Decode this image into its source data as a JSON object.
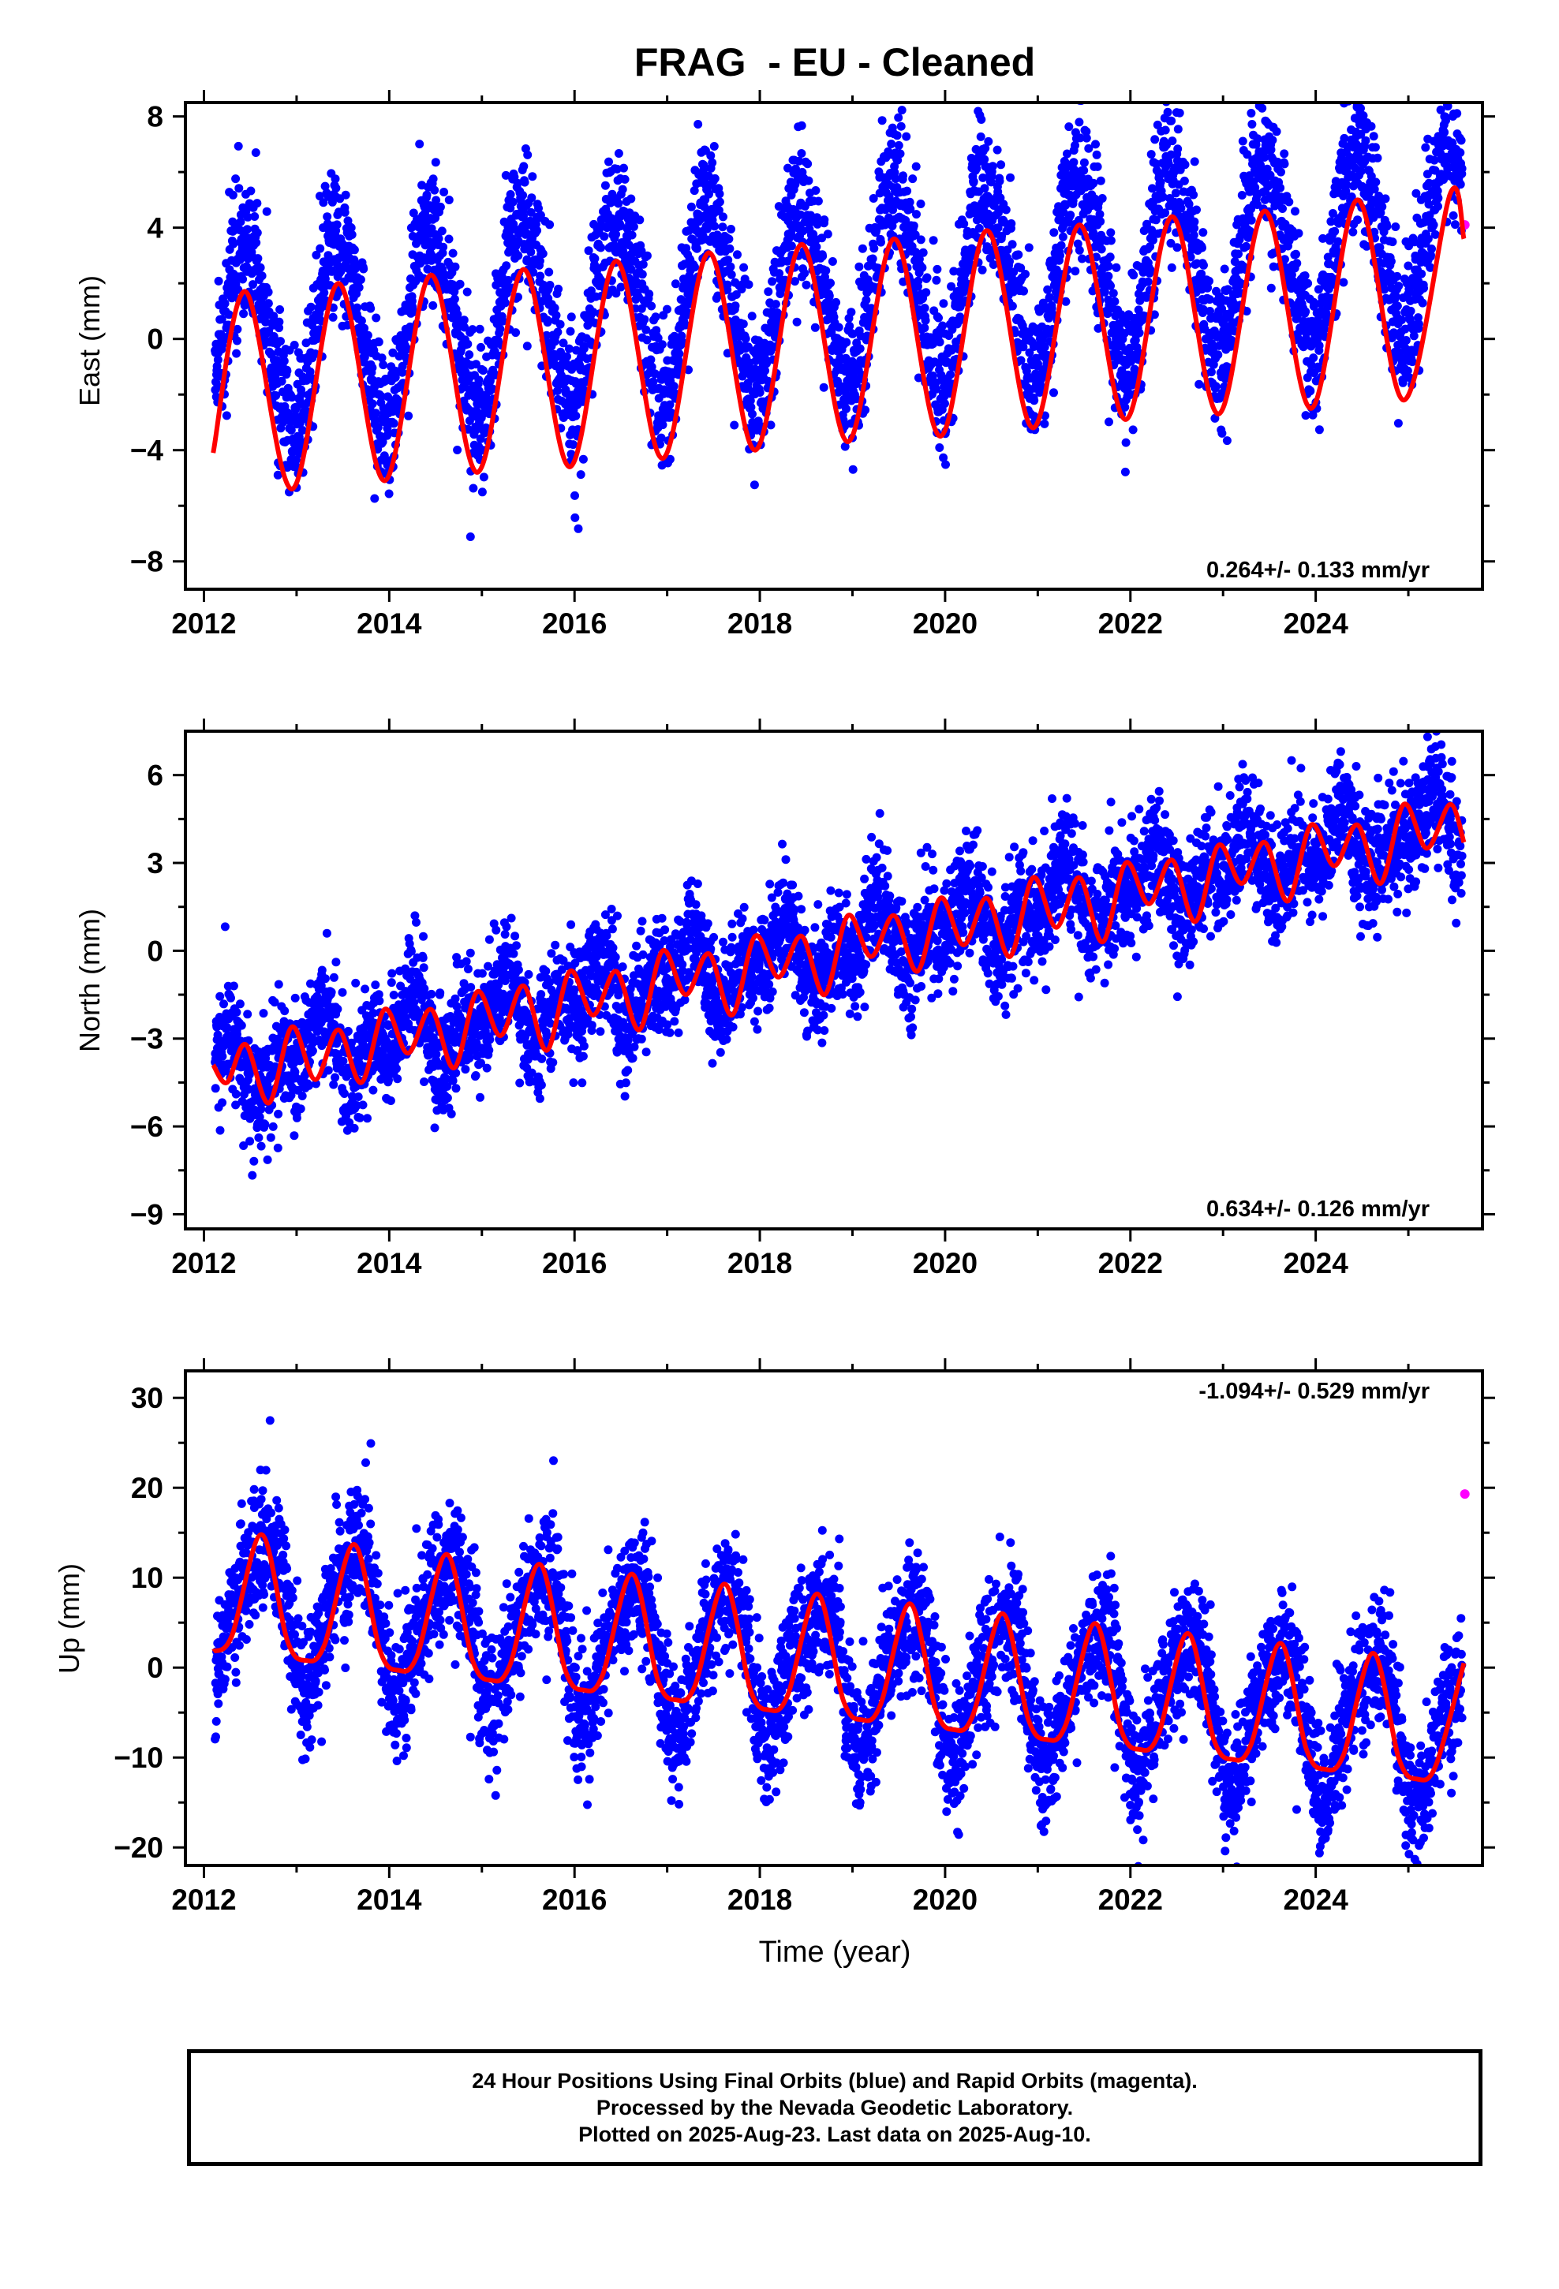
{
  "title": "FRAG  - EU - Cleaned",
  "colors": {
    "final_orbits": "#0000ff",
    "rapid_orbits": "#ff00ff",
    "model_fit": "#ff0000",
    "frame": "#000000"
  },
  "x_axis_label": "Time (year)",
  "footer": {
    "line1": "24 Hour Positions Using Final Orbits (blue) and Rapid Orbits (magenta).",
    "line2": "Processed by the Nevada Geodetic Laboratory.",
    "line3": "Plotted on 2025-Aug-23. Last data on 2025-Aug-10."
  },
  "panels": [
    {
      "ylabel": "East (mm)",
      "rate_label": "0.264+/- 0.133 mm/yr"
    },
    {
      "ylabel": "North (mm)",
      "rate_label": "0.634+/- 0.126 mm/yr"
    },
    {
      "ylabel": "Up (mm)",
      "rate_label": "-1.094+/- 0.529 mm/yr"
    }
  ],
  "chart_data": [
    {
      "type": "scatter",
      "ylabel": "East (mm)",
      "xlim": [
        2011.8,
        2025.8
      ],
      "ylim": [
        -9,
        8.5
      ],
      "x_ticks": [
        2012,
        2014,
        2016,
        2018,
        2020,
        2022,
        2024
      ],
      "y_ticks": [
        -8,
        -4,
        0,
        4,
        8
      ],
      "rate_annotation": "0.264+/- 0.133 mm/yr",
      "series": [
        {
          "name": "Final Orbits (blue)",
          "kind": "daily positions",
          "x_range": [
            2012.12,
            2025.58
          ],
          "model": {
            "base": 0,
            "slope": 0.264,
            "annual_amp": 3.4,
            "annual_phase_year": 0.45,
            "semiannual_amp": 0.3,
            "scatter_sd": 1.3
          }
        },
        {
          "name": "Rapid Orbits (magenta)",
          "kind": "daily positions",
          "points": [
            [
              2025.61,
              4.1
            ]
          ]
        },
        {
          "name": "model fit",
          "kind": "line",
          "x": [
            2012.1,
            2012.45,
            2012.95,
            2013.45,
            2013.95,
            2014.45,
            2014.95,
            2015.45,
            2015.95,
            2016.45,
            2016.95,
            2017.45,
            2017.95,
            2018.45,
            2018.95,
            2019.45,
            2019.95,
            2020.45,
            2020.95,
            2021.45,
            2021.95,
            2022.45,
            2022.95,
            2023.45,
            2023.95,
            2024.45,
            2024.95,
            2025.45,
            2025.6
          ],
          "y": [
            -4.1,
            1.7,
            -5.4,
            2.0,
            -5.1,
            2.3,
            -4.8,
            2.5,
            -4.6,
            2.8,
            -4.3,
            3.1,
            -4.0,
            3.4,
            -3.7,
            3.6,
            -3.5,
            3.9,
            -3.2,
            4.1,
            -2.9,
            4.4,
            -2.7,
            4.6,
            -2.5,
            5.0,
            -2.2,
            5.2,
            3.6
          ]
        }
      ]
    },
    {
      "type": "scatter",
      "ylabel": "North (mm)",
      "xlim": [
        2011.8,
        2025.8
      ],
      "ylim": [
        -9.5,
        7.5
      ],
      "x_ticks": [
        2012,
        2014,
        2016,
        2018,
        2020,
        2022,
        2024
      ],
      "y_ticks": [
        -9,
        -6,
        -3,
        0,
        3,
        6
      ],
      "rate_annotation": "0.634+/- 0.126 mm/yr",
      "series": [
        {
          "name": "Final Orbits (blue)",
          "kind": "daily positions",
          "x_range": [
            2012.12,
            2025.58
          ],
          "model": {
            "base": -4.2,
            "slope": 0.634,
            "annual_amp": 0.75,
            "annual_phase_year": 0.2,
            "semiannual_amp": 0.65,
            "scatter_sd": 1.0
          }
        },
        {
          "name": "model fit",
          "kind": "line",
          "x": [
            2012.1,
            2012.25,
            2012.45,
            2012.7,
            2012.95,
            2013.2,
            2013.45,
            2013.7,
            2013.95,
            2014.2,
            2014.45,
            2014.7,
            2014.95,
            2015.2,
            2015.45,
            2015.7,
            2015.95,
            2016.2,
            2016.45,
            2016.7,
            2016.95,
            2017.2,
            2017.45,
            2017.7,
            2017.95,
            2018.2,
            2018.45,
            2018.7,
            2018.95,
            2019.2,
            2019.45,
            2019.7,
            2019.95,
            2020.2,
            2020.45,
            2020.7,
            2020.95,
            2021.2,
            2021.45,
            2021.7,
            2021.95,
            2022.2,
            2022.45,
            2022.7,
            2022.95,
            2023.2,
            2023.45,
            2023.7,
            2023.95,
            2024.2,
            2024.45,
            2024.7,
            2024.95,
            2025.2,
            2025.45,
            2025.6
          ],
          "y": [
            -3.9,
            -4.5,
            -3.2,
            -5.2,
            -2.6,
            -4.4,
            -2.7,
            -4.5,
            -2.0,
            -3.5,
            -2.0,
            -4.0,
            -1.4,
            -2.9,
            -1.2,
            -3.4,
            -0.7,
            -2.2,
            -0.7,
            -2.7,
            0.0,
            -1.5,
            -0.1,
            -2.2,
            0.5,
            -0.9,
            0.5,
            -1.5,
            1.2,
            -0.2,
            1.2,
            -0.7,
            1.8,
            0.2,
            1.8,
            -0.2,
            2.5,
            0.8,
            2.5,
            0.3,
            3.0,
            1.6,
            3.1,
            1.0,
            3.6,
            2.3,
            3.7,
            1.7,
            4.3,
            2.9,
            4.3,
            2.3,
            5.0,
            3.5,
            5.0,
            3.7
          ]
        }
      ]
    },
    {
      "type": "scatter",
      "ylabel": "Up (mm)",
      "xlim": [
        2011.8,
        2025.8
      ],
      "ylim": [
        -22,
        33
      ],
      "x_ticks": [
        2012,
        2014,
        2016,
        2018,
        2020,
        2022,
        2024
      ],
      "y_ticks": [
        -20,
        -10,
        0,
        10,
        20,
        30
      ],
      "xlabel": "Time (year)",
      "rate_annotation": "-1.094+/- 0.529 mm/yr",
      "series": [
        {
          "name": "Final Orbits (blue)",
          "kind": "daily positions",
          "x_range": [
            2012.12,
            2025.58
          ],
          "model": {
            "base": 7.5,
            "slope": -1.094,
            "annual_amp": 7.5,
            "annual_phase_year": 0.62,
            "semiannual_amp": 1.8,
            "scatter_sd": 3.6
          }
        },
        {
          "name": "Rapid Orbits (magenta)",
          "kind": "daily positions",
          "points": [
            [
              2025.61,
              19.3
            ]
          ]
        },
        {
          "name": "model fit",
          "kind": "line",
          "x": [
            2012.1,
            2012.3,
            2012.62,
            2012.9,
            2013.1,
            2013.3,
            2013.62,
            2013.9,
            2014.1,
            2014.3,
            2014.62,
            2014.9,
            2015.1,
            2015.3,
            2015.62,
            2015.9,
            2016.1,
            2016.3,
            2016.62,
            2016.9,
            2017.1,
            2017.3,
            2017.62,
            2017.9,
            2018.1,
            2018.3,
            2018.62,
            2018.9,
            2019.1,
            2019.3,
            2019.62,
            2019.9,
            2020.1,
            2020.3,
            2020.62,
            2020.9,
            2021.1,
            2021.3,
            2021.62,
            2021.9,
            2022.1,
            2022.3,
            2022.62,
            2022.9,
            2023.1,
            2023.3,
            2023.62,
            2023.9,
            2024.1,
            2024.3,
            2024.62,
            2024.9,
            2025.1,
            2025.3,
            2025.6
          ],
          "y": [
            1.8,
            3.5,
            14.8,
            3.0,
            0.8,
            2.5,
            13.7,
            1.9,
            -0.3,
            1.3,
            12.6,
            0.8,
            -1.4,
            0.2,
            11.5,
            -0.3,
            -2.5,
            -0.9,
            10.4,
            -1.4,
            -3.6,
            -2.0,
            9.3,
            -2.5,
            -4.7,
            -3.1,
            8.2,
            -3.6,
            -5.8,
            -4.2,
            7.1,
            -4.7,
            -6.9,
            -5.3,
            6.0,
            -5.8,
            -8.0,
            -6.4,
            4.9,
            -6.9,
            -9.1,
            -7.5,
            3.8,
            -8.0,
            -10.2,
            -8.6,
            2.7,
            -9.1,
            -11.3,
            -9.7,
            1.6,
            -10.2,
            -12.4,
            -10.8,
            0.5
          ]
        }
      ]
    }
  ]
}
